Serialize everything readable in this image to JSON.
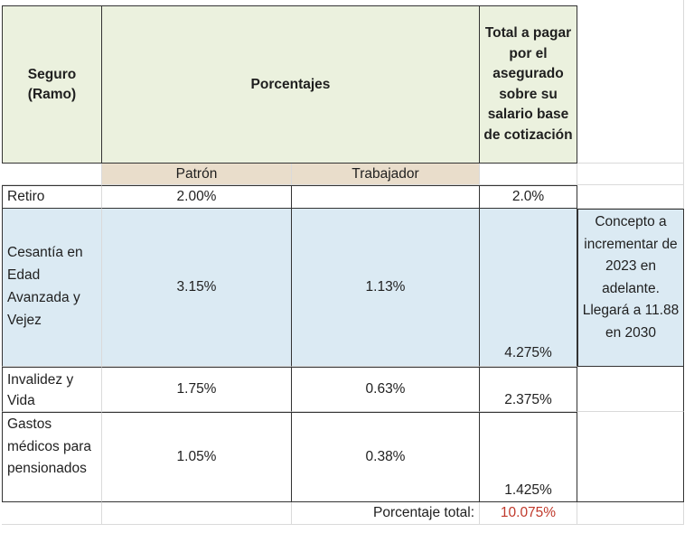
{
  "headers": {
    "seguro": "Seguro\n(Ramo)",
    "porcentajes": "Porcentajes",
    "total": "Total a pagar por el asegurado sobre su salario base de cotización",
    "patron": "Patrón",
    "trabajador": "Trabajador"
  },
  "rows": [
    {
      "seguro": "Retiro",
      "patron": "2.00%",
      "trabajador": "",
      "total": "2.0%",
      "nota": ""
    },
    {
      "seguro": "Cesantía en Edad Avanzada y Vejez",
      "patron": "3.15%",
      "trabajador": "1.13%",
      "total": "4.275%",
      "nota": "Concepto a incrementar de 2023 en adelante. Llegará a 11.88 en 2030"
    },
    {
      "seguro": "Invalidez y Vida",
      "patron": "1.75%",
      "trabajador": "0.63%",
      "total": "2.375%",
      "nota": ""
    },
    {
      "seguro": "Gastos médicos para pensionados",
      "patron": "1.05%",
      "trabajador": "0.38%",
      "total": "1.425%",
      "nota": ""
    }
  ],
  "footer": {
    "label": "Porcentaje total:",
    "value": "10.075%",
    "value_color": "#c0392b"
  }
}
